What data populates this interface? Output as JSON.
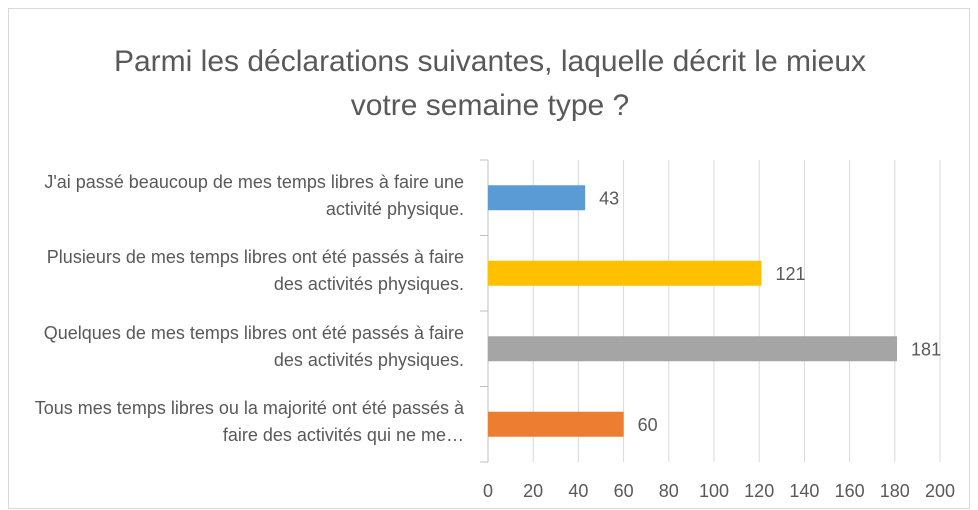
{
  "chart_data": {
    "type": "bar",
    "orientation": "horizontal",
    "title": "Parmi les déclarations suivantes, laquelle décrit le mieux votre semaine type ?",
    "categories": [
      "J'ai passé beaucoup de mes temps libres à faire une activité physique.",
      "Plusieurs de mes temps libres ont été passés à faire des activités physiques.",
      "Quelques de mes temps libres ont été passés à faire des activités physiques.",
      "Tous mes temps libres ou la majorité ont été passés à faire des activités qui ne me…"
    ],
    "values": [
      43,
      121,
      181,
      60
    ],
    "colors": [
      "#5b9bd5",
      "#ffc000",
      "#a5a5a5",
      "#ed7d31"
    ],
    "xlim": [
      0,
      200
    ],
    "xticks": [
      0,
      20,
      40,
      60,
      80,
      100,
      120,
      140,
      160,
      180,
      200
    ],
    "grid": true
  }
}
